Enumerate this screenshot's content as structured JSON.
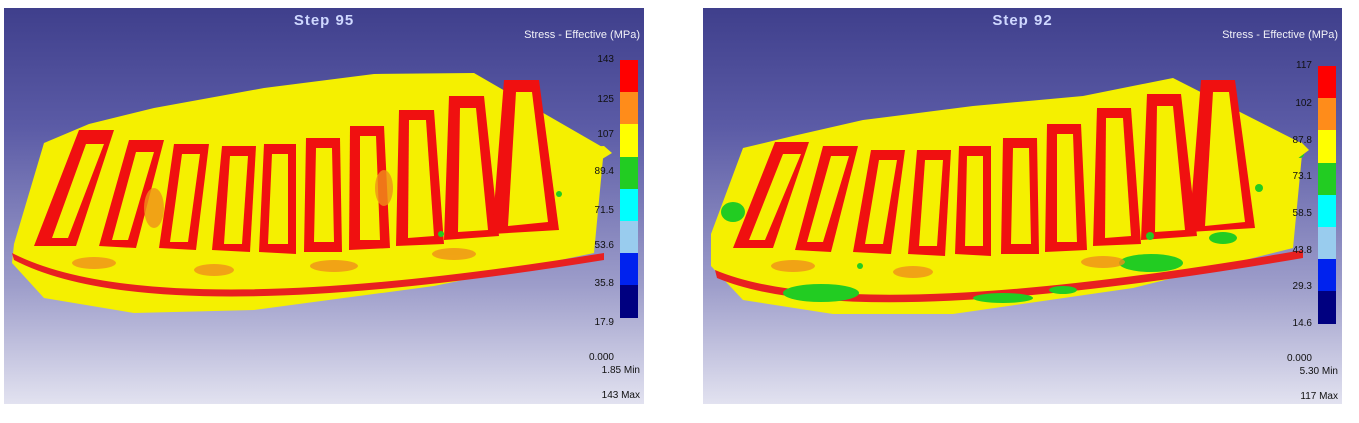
{
  "panels": [
    {
      "step_label": "Step   95",
      "legend_title": "Stress - Effective (MPa)",
      "ticks": [
        "143",
        "125",
        "107",
        "89.4",
        "71.5",
        "53.6",
        "35.8",
        "17.9",
        "0.000"
      ],
      "min_label": "1.85  Min",
      "max_label": "143  Max"
    },
    {
      "step_label": "Step   92",
      "legend_title": "Stress - Effective (MPa)",
      "ticks": [
        "117",
        "102",
        "87.8",
        "73.1",
        "58.5",
        "43.8",
        "29.3",
        "14.6",
        "0.000"
      ],
      "min_label": "5.30  Min",
      "max_label": "117  Max"
    }
  ],
  "colors": {
    "legend": [
      "#ff0000",
      "#ff8c1a",
      "#ffff00",
      "#22cc22",
      "#00ffff",
      "#99ccee",
      "#0022ee",
      "#000080"
    ],
    "high": "#f01010",
    "mid": "#f0901a",
    "low": "#f5f000",
    "green": "#22cc22"
  }
}
